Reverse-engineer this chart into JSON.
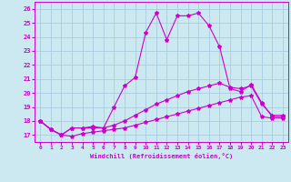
{
  "xlabel": "Windchill (Refroidissement éolien,°C)",
  "x_values": [
    0,
    1,
    2,
    3,
    4,
    5,
    6,
    7,
    8,
    9,
    10,
    11,
    12,
    13,
    14,
    15,
    16,
    17,
    18,
    19,
    20,
    21,
    22,
    23
  ],
  "line_bottom": [
    18.0,
    17.4,
    17.0,
    16.9,
    17.1,
    17.2,
    17.3,
    17.4,
    17.5,
    17.7,
    17.9,
    18.1,
    18.3,
    18.5,
    18.7,
    18.9,
    19.1,
    19.3,
    19.5,
    19.7,
    19.8,
    18.3,
    18.2,
    18.2
  ],
  "line_mid": [
    18.0,
    17.4,
    17.0,
    17.5,
    17.5,
    17.5,
    17.5,
    17.7,
    18.0,
    18.4,
    18.8,
    19.2,
    19.5,
    19.8,
    20.1,
    20.3,
    20.5,
    20.7,
    20.4,
    20.3,
    20.5,
    19.2,
    18.4,
    18.4
  ],
  "line_top": [
    18.0,
    17.4,
    17.0,
    17.5,
    17.5,
    17.6,
    17.5,
    19.0,
    20.5,
    21.1,
    24.3,
    25.7,
    23.8,
    25.5,
    25.5,
    25.7,
    24.8,
    23.3,
    20.3,
    20.1,
    20.6,
    19.3,
    18.3,
    18.3
  ],
  "line_color": "#cc00cc",
  "bg_color": "#cce8f0",
  "grid_color": "#aaccdd",
  "ylim": [
    16.5,
    26.5
  ],
  "xlim": [
    -0.5,
    23.5
  ],
  "yticks": [
    17,
    18,
    19,
    20,
    21,
    22,
    23,
    24,
    25,
    26
  ],
  "xticks": [
    0,
    1,
    2,
    3,
    4,
    5,
    6,
    7,
    8,
    9,
    10,
    11,
    12,
    13,
    14,
    15,
    16,
    17,
    18,
    19,
    20,
    21,
    22,
    23
  ]
}
